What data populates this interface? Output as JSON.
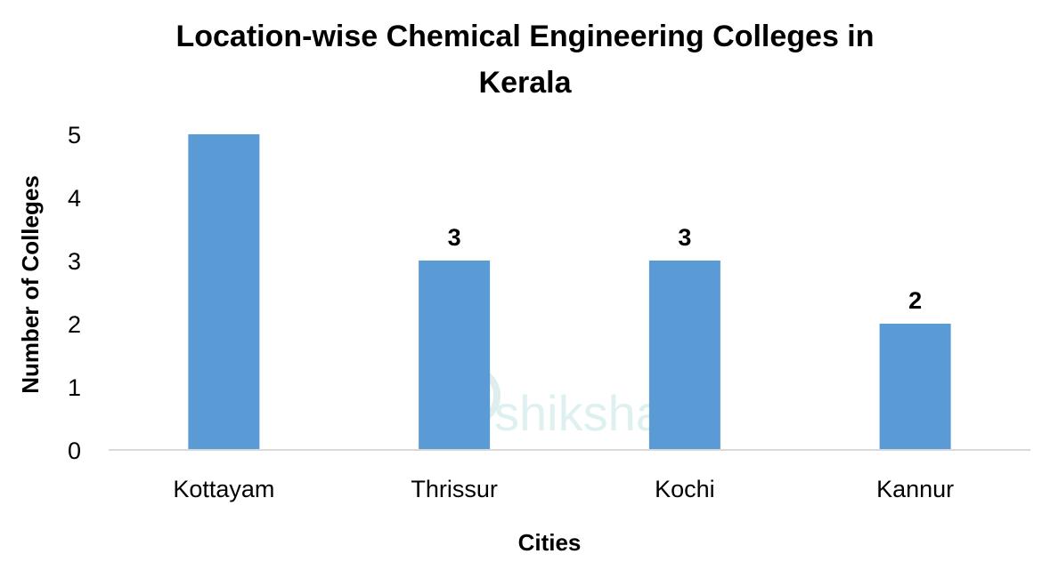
{
  "chart_data": {
    "type": "bar",
    "title_line1": "Location-wise Chemical Engineering Colleges in",
    "title_line2": "Kerala",
    "xlabel": "Cities",
    "ylabel": "Number of Colleges",
    "categories": [
      "Kottayam",
      "Thrissur",
      "Kochi",
      "Kannur"
    ],
    "values": [
      5,
      3,
      3,
      2
    ],
    "data_labels": [
      "",
      "3",
      "3",
      "2"
    ],
    "yticks": [
      "0",
      "1",
      "2",
      "3",
      "4",
      "5"
    ],
    "ylim": [
      0,
      5
    ],
    "bar_color": "#5B9BD5",
    "grid": false,
    "legend": "none"
  },
  "watermark": {
    "text": "shiksha",
    "color": "#d4ecec"
  }
}
